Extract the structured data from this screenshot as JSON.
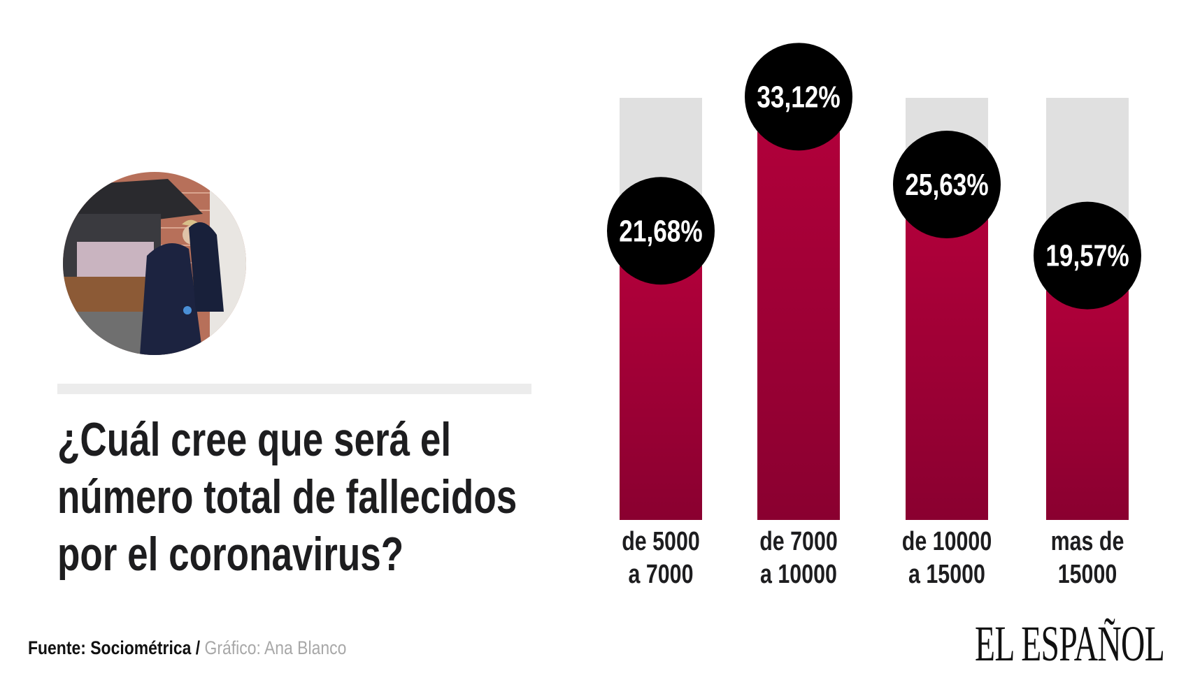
{
  "chart_data": {
    "type": "bar",
    "title": "¿Cuál cree que será el número total de fallecidos por el coronavirus?",
    "title_lines": [
      "¿Cuál cree que será el",
      "número total de fallecidos",
      "por el coronavirus?"
    ],
    "categories": [
      [
        "de 5000",
        "a 7000"
      ],
      [
        "de 7000",
        "a 10000"
      ],
      [
        "de 10000",
        "a 15000"
      ],
      [
        "mas de",
        "15000"
      ]
    ],
    "values": [
      21.68,
      33.12,
      25.63,
      19.57
    ],
    "data_labels": [
      "21,68%",
      "33,12%",
      "25,63%",
      "19,57%"
    ],
    "unit": "%",
    "grid": false,
    "legend": "none",
    "colors": {
      "bar_top": "#b0003a",
      "bar_bottom": "#8a0030",
      "track": "#e0e0e0",
      "label_circle": "#000000",
      "label_text": "#ffffff"
    }
  },
  "footer": {
    "source": "Fuente: Sociométrica",
    "separator": " / ",
    "credit": "Gráfico: Ana Blanco"
  },
  "logo": "EL ESPAÑOL"
}
